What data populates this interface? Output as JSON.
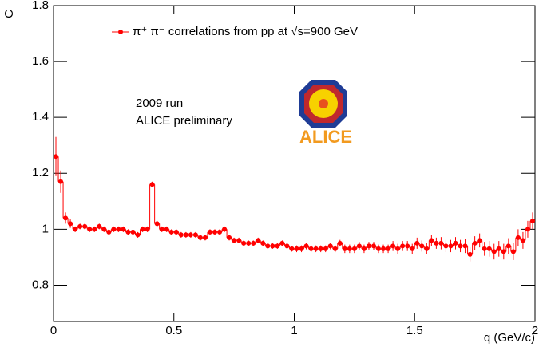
{
  "chart_data": {
    "type": "errorbar",
    "legend_label": "π⁺ π⁻ correlations from pp at √s=900 GeV",
    "annotations": [
      "2009 run",
      "ALICE preliminary"
    ],
    "logo_text": "ALICE",
    "x_label": "q (GeV/c)",
    "y_label": "C",
    "xlim": [
      0,
      2
    ],
    "ylim": [
      0.67,
      1.8
    ],
    "xticks": [
      0,
      0.5,
      1,
      1.5,
      2
    ],
    "yticks": [
      0.8,
      1,
      1.2,
      1.4,
      1.6,
      1.8
    ],
    "color": "#ff0000",
    "x": [
      0.01,
      0.03,
      0.05,
      0.07,
      0.09,
      0.11,
      0.13,
      0.15,
      0.17,
      0.19,
      0.21,
      0.23,
      0.25,
      0.27,
      0.29,
      0.31,
      0.33,
      0.35,
      0.37,
      0.39,
      0.41,
      0.43,
      0.45,
      0.47,
      0.49,
      0.51,
      0.53,
      0.55,
      0.57,
      0.59,
      0.61,
      0.63,
      0.65,
      0.67,
      0.69,
      0.71,
      0.73,
      0.75,
      0.77,
      0.79,
      0.81,
      0.83,
      0.85,
      0.87,
      0.89,
      0.91,
      0.93,
      0.95,
      0.97,
      0.99,
      1.01,
      1.03,
      1.05,
      1.07,
      1.09,
      1.11,
      1.13,
      1.15,
      1.17,
      1.19,
      1.21,
      1.23,
      1.25,
      1.27,
      1.29,
      1.31,
      1.33,
      1.35,
      1.37,
      1.39,
      1.41,
      1.43,
      1.45,
      1.47,
      1.49,
      1.51,
      1.53,
      1.55,
      1.57,
      1.59,
      1.61,
      1.63,
      1.65,
      1.67,
      1.69,
      1.71,
      1.73,
      1.75,
      1.77,
      1.79,
      1.81,
      1.83,
      1.85,
      1.87,
      1.89,
      1.91,
      1.93,
      1.95,
      1.97,
      1.99
    ],
    "values": [
      1.26,
      1.17,
      1.04,
      1.02,
      1.0,
      1.01,
      1.01,
      1.0,
      1.0,
      1.01,
      1.0,
      0.99,
      1.0,
      1.0,
      1.0,
      0.99,
      0.99,
      0.98,
      1.0,
      1.0,
      1.16,
      1.02,
      1.0,
      1.0,
      0.99,
      0.99,
      0.98,
      0.98,
      0.98,
      0.98,
      0.97,
      0.97,
      0.99,
      0.99,
      0.99,
      1.0,
      0.97,
      0.96,
      0.96,
      0.95,
      0.95,
      0.95,
      0.96,
      0.95,
      0.94,
      0.94,
      0.94,
      0.95,
      0.94,
      0.93,
      0.93,
      0.93,
      0.94,
      0.93,
      0.93,
      0.93,
      0.93,
      0.94,
      0.93,
      0.95,
      0.93,
      0.93,
      0.93,
      0.94,
      0.93,
      0.94,
      0.94,
      0.93,
      0.93,
      0.93,
      0.94,
      0.93,
      0.94,
      0.94,
      0.93,
      0.95,
      0.94,
      0.93,
      0.96,
      0.95,
      0.95,
      0.94,
      0.94,
      0.95,
      0.94,
      0.94,
      0.91,
      0.95,
      0.96,
      0.93,
      0.93,
      0.92,
      0.93,
      0.92,
      0.94,
      0.92,
      0.97,
      0.96,
      1.0,
      1.03
    ],
    "errors": [
      0.07,
      0.04,
      0.02,
      0.015,
      0.01,
      0.01,
      0.01,
      0.01,
      0.01,
      0.01,
      0.01,
      0.01,
      0.01,
      0.01,
      0.01,
      0.01,
      0.01,
      0.01,
      0.01,
      0.01,
      0.01,
      0.01,
      0.01,
      0.01,
      0.01,
      0.01,
      0.01,
      0.01,
      0.01,
      0.01,
      0.01,
      0.01,
      0.01,
      0.01,
      0.01,
      0.01,
      0.01,
      0.01,
      0.01,
      0.01,
      0.01,
      0.01,
      0.01,
      0.01,
      0.01,
      0.01,
      0.01,
      0.01,
      0.01,
      0.01,
      0.012,
      0.012,
      0.012,
      0.012,
      0.012,
      0.012,
      0.012,
      0.012,
      0.012,
      0.012,
      0.015,
      0.015,
      0.015,
      0.015,
      0.015,
      0.015,
      0.015,
      0.015,
      0.015,
      0.015,
      0.018,
      0.018,
      0.018,
      0.018,
      0.018,
      0.02,
      0.02,
      0.02,
      0.02,
      0.02,
      0.022,
      0.022,
      0.022,
      0.022,
      0.022,
      0.025,
      0.025,
      0.025,
      0.025,
      0.025,
      0.028,
      0.028,
      0.028,
      0.028,
      0.028,
      0.03,
      0.03,
      0.03,
      0.03,
      0.03
    ]
  }
}
